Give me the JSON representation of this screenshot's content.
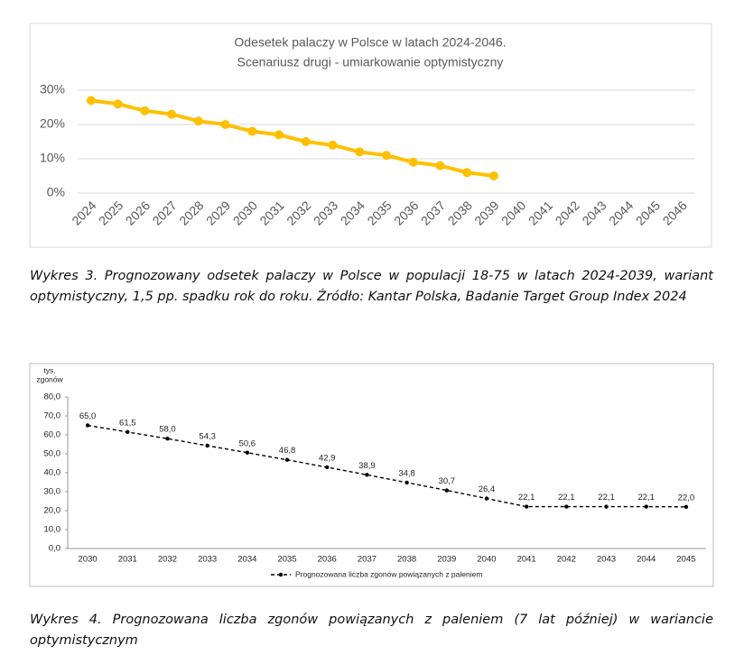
{
  "chart_data": [
    {
      "type": "line",
      "title": [
        "Odesetek palaczy w Polsce w latach 2024-2046.",
        "Scenariusz drugi - umiarkowanie optymistyczny"
      ],
      "categories": [
        "2024",
        "2025",
        "2026",
        "2027",
        "2028",
        "2029",
        "2030",
        "2031",
        "2032",
        "2033",
        "2034",
        "2035",
        "2036",
        "2037",
        "2038",
        "2039",
        "2040",
        "2041",
        "2042",
        "2043",
        "2044",
        "2045",
        "2046"
      ],
      "values": [
        27,
        26,
        24,
        23,
        21,
        20,
        18,
        17,
        15,
        14,
        12,
        11,
        9,
        8,
        6,
        5,
        null,
        null,
        null,
        null,
        null,
        null,
        null
      ],
      "color": "#ffc000",
      "ylim": [
        0,
        30
      ],
      "yticks": [
        {
          "value": 0,
          "label": "0%"
        },
        {
          "value": 10,
          "label": "10%"
        },
        {
          "value": 20,
          "label": "20%"
        },
        {
          "value": 30,
          "label": "30%"
        }
      ],
      "grid": true,
      "caption": "Wykres 3. Prognozowany odsetek palaczy w Polsce w populacji 18-75 w latach 2024-2039, wariant optymistyczny, 1,5 pp. spadku rok do roku. Źródło: Kantar Polska, Badanie Target Group Index 2024"
    },
    {
      "type": "line",
      "ylabel": [
        "tys.",
        "zgonów"
      ],
      "categories": [
        "2030",
        "2031",
        "2032",
        "2033",
        "2034",
        "2035",
        "2036",
        "2037",
        "2038",
        "2039",
        "2040",
        "2041",
        "2042",
        "2043",
        "2044",
        "2045"
      ],
      "series": [
        {
          "name": "Prognozowana liczba zgonów powiązanych z paleniem",
          "color": "#000000",
          "values": [
            65.0,
            61.5,
            58.0,
            54.3,
            50.6,
            46.8,
            42.9,
            38.9,
            34.8,
            30.7,
            26.4,
            22.1,
            22.1,
            22.1,
            22.1,
            22.0
          ],
          "value_labels": [
            "65,0",
            "61,5",
            "58,0",
            "54,3",
            "50,6",
            "46,8",
            "42,9",
            "38,9",
            "34,8",
            "30,7",
            "26,4",
            "22,1",
            "22,1",
            "22,1",
            "22,1",
            "22,0"
          ]
        }
      ],
      "ylim": [
        0,
        80
      ],
      "yticks": [
        {
          "value": 0,
          "label": "0,0"
        },
        {
          "value": 10,
          "label": "10,0"
        },
        {
          "value": 20,
          "label": "20,0"
        },
        {
          "value": 30,
          "label": "30,0"
        },
        {
          "value": 40,
          "label": "40,0"
        },
        {
          "value": 50,
          "label": "50,0"
        },
        {
          "value": 60,
          "label": "60,0"
        },
        {
          "value": 70,
          "label": "70,0"
        },
        {
          "value": 80,
          "label": "80,0"
        }
      ],
      "grid": false,
      "legend": "bottom",
      "caption": "Wykres 4. Prognozowana liczba zgonów powiązanych z paleniem (7 lat później) w wariancie optymistycznym"
    }
  ]
}
